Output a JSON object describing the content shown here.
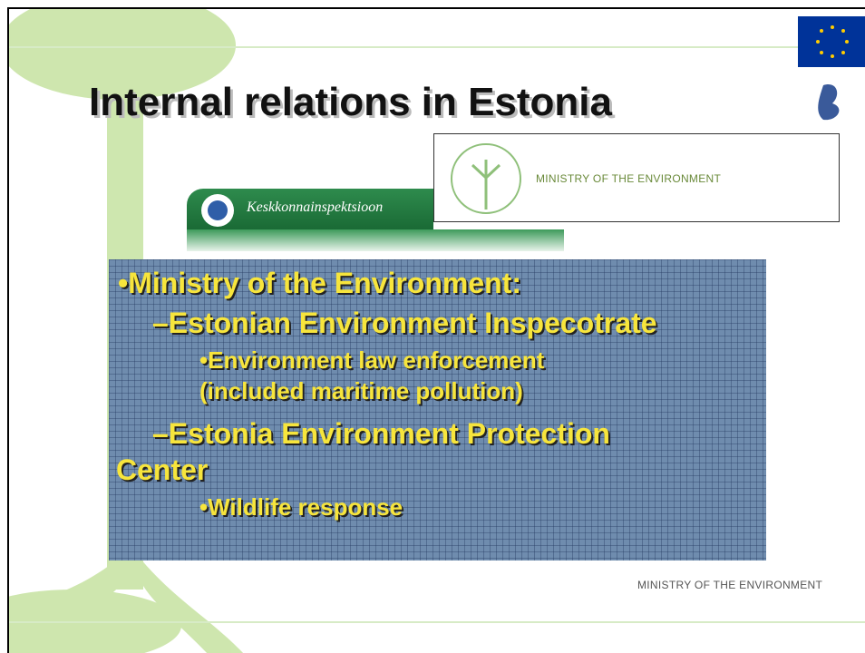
{
  "title": "Internal relations in Estonia",
  "logos": {
    "inspectorate": "Keskkonnainspektsioon",
    "ministry": "MINISTRY OF THE ENVIRONMENT"
  },
  "bullets": [
    {
      "level": 1,
      "lines": [
        "•Ministry of the Environment:"
      ]
    },
    {
      "level": 2,
      "lines": [
        "–Estonian Environment Inspecotrate"
      ]
    },
    {
      "level": 3,
      "lines": [
        "•Environment law enforcement",
        "(included maritime pollution)"
      ]
    },
    {
      "level": 2,
      "lines": [
        "–Estonia Environment Protection",
        "Center"
      ]
    },
    {
      "level": 3,
      "lines": [
        "•Wildlife response"
      ]
    }
  ],
  "footer": "MINISTRY OF THE ENVIRONMENT"
}
